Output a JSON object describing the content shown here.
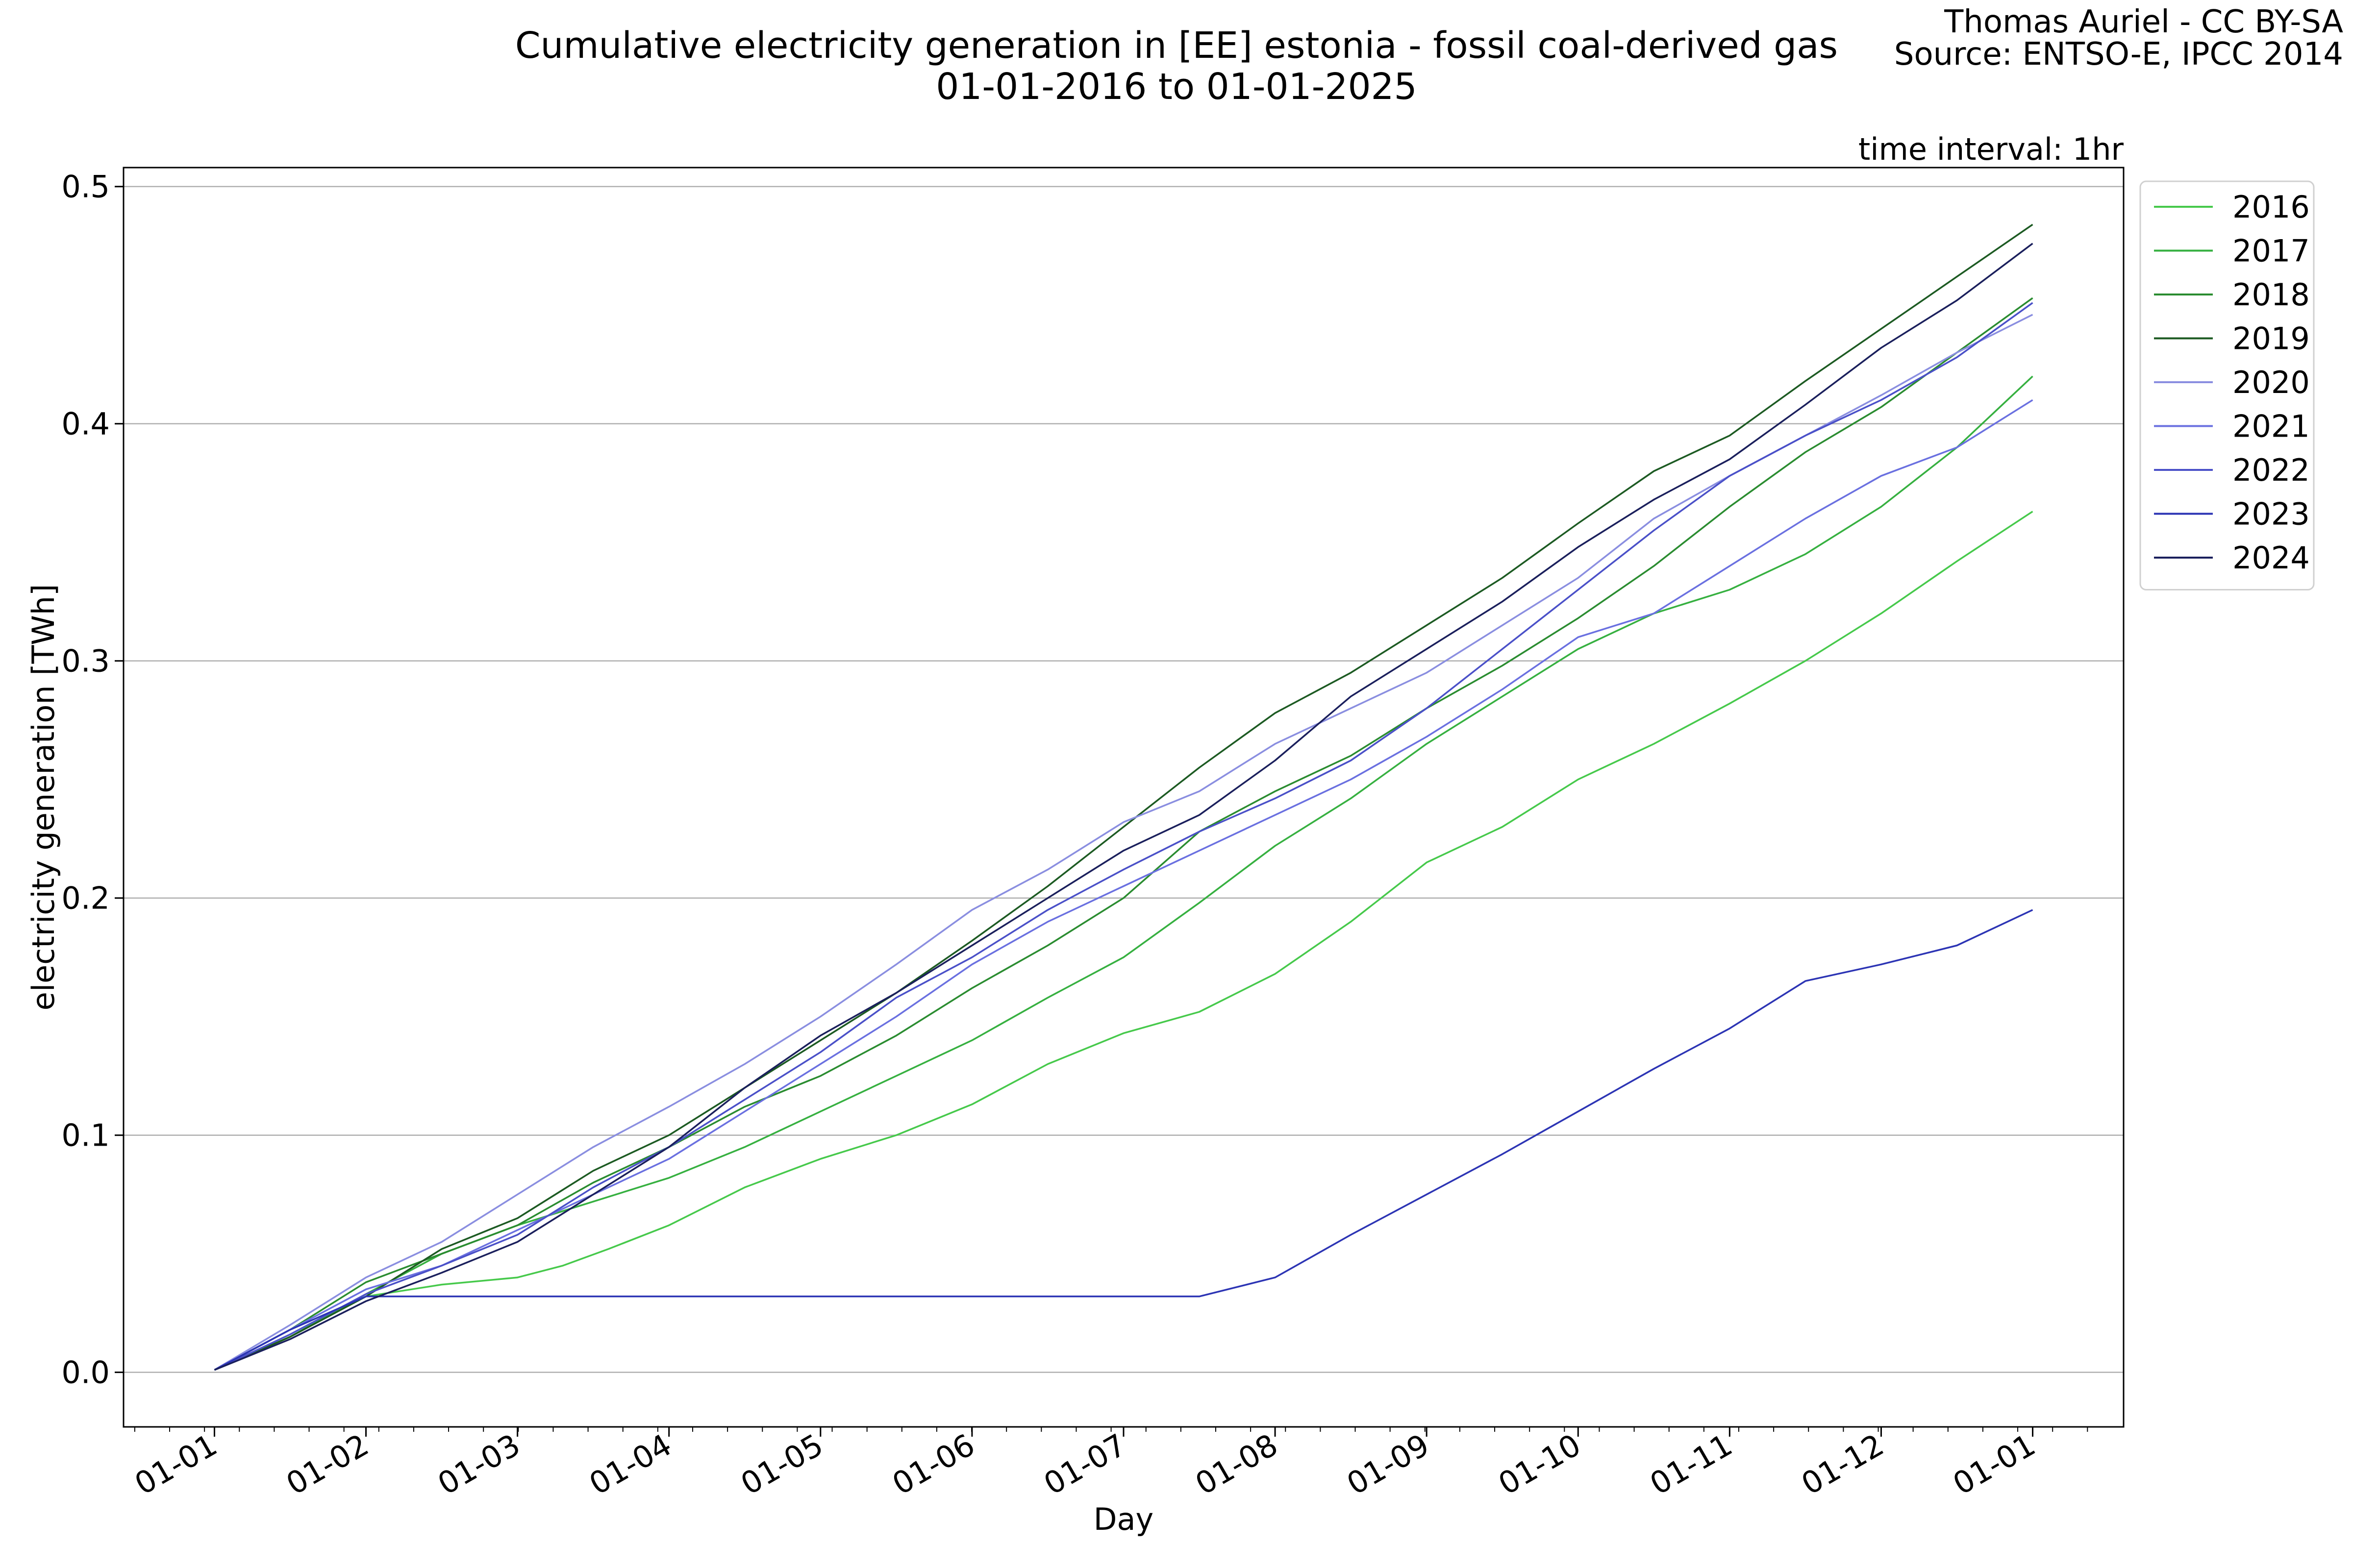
{
  "header": {
    "title_line1": "Cumulative electricity generation in [EE] estonia - fossil coal-derived gas",
    "title_line2": "01-01-2016 to 01-01-2025",
    "credit_line1": "Thomas Auriel - CC BY-SA",
    "credit_line2": "Source: ENTSO-E, IPCC 2014",
    "interval_note": "time interval: 1hr"
  },
  "chart_data": {
    "type": "line",
    "title": "Cumulative electricity generation in [EE] estonia - fossil coal-derived gas",
    "subtitle": "01-01-2016 to 01-01-2025",
    "xlabel": "Day",
    "ylabel": "electricity generation [TWh]",
    "x_tick_labels": [
      "01-01",
      "01-02",
      "01-03",
      "01-04",
      "01-05",
      "01-06",
      "01-07",
      "01-08",
      "01-09",
      "01-10",
      "01-11",
      "01-12",
      "01-01"
    ],
    "y_tick_labels": [
      "0.0",
      "0.1",
      "0.2",
      "0.3",
      "0.4",
      "0.5"
    ],
    "y_ticks": [
      0.0,
      0.1,
      0.2,
      0.3,
      0.4,
      0.5
    ],
    "ylim": [
      -0.023,
      0.508
    ],
    "xlim_months": [
      -0.6,
      12.6
    ],
    "grid": "horizontal",
    "legend_position": "upper right outside",
    "x_unit": "month of year (0 = 01-01, 12 = next 01-01)",
    "series": [
      {
        "name": "2016",
        "color": "#46c94b",
        "x": [
          0,
          0.5,
          1,
          1.5,
          2,
          2.3,
          2.6,
          3,
          3.5,
          4,
          4.5,
          5,
          5.5,
          6,
          6.5,
          7,
          7.5,
          8,
          8.5,
          9,
          9.5,
          10,
          10.5,
          11,
          11.5,
          12
        ],
        "y": [
          0.001,
          0.015,
          0.032,
          0.037,
          0.04,
          0.045,
          0.052,
          0.062,
          0.078,
          0.09,
          0.1,
          0.113,
          0.13,
          0.143,
          0.152,
          0.168,
          0.19,
          0.215,
          0.23,
          0.25,
          0.265,
          0.282,
          0.3,
          0.32,
          0.342,
          0.363
        ]
      },
      {
        "name": "2017",
        "color": "#36b040",
        "x": [
          0,
          0.5,
          1,
          1.5,
          2,
          2.5,
          3,
          3.5,
          4,
          4.5,
          5,
          5.5,
          6,
          6.5,
          7,
          7.5,
          8,
          8.5,
          9,
          9.5,
          10,
          10.5,
          11,
          11.5,
          12
        ],
        "y": [
          0.001,
          0.015,
          0.033,
          0.05,
          0.062,
          0.072,
          0.082,
          0.095,
          0.11,
          0.125,
          0.14,
          0.158,
          0.175,
          0.198,
          0.222,
          0.242,
          0.265,
          0.285,
          0.305,
          0.32,
          0.33,
          0.345,
          0.365,
          0.39,
          0.42
        ]
      },
      {
        "name": "2018",
        "color": "#2a8c30",
        "x": [
          0,
          0.5,
          1,
          1.5,
          2,
          2.5,
          3,
          3.5,
          4,
          4.5,
          5,
          5.5,
          6,
          6.5,
          7,
          7.5,
          8,
          8.5,
          9,
          9.5,
          10,
          10.5,
          11,
          11.5,
          12
        ],
        "y": [
          0.001,
          0.018,
          0.038,
          0.05,
          0.062,
          0.08,
          0.095,
          0.112,
          0.125,
          0.142,
          0.162,
          0.18,
          0.2,
          0.228,
          0.245,
          0.26,
          0.28,
          0.298,
          0.318,
          0.34,
          0.365,
          0.388,
          0.407,
          0.43,
          0.453
        ]
      },
      {
        "name": "2019",
        "color": "#1c5a22",
        "x": [
          0,
          0.5,
          1,
          1.5,
          2,
          2.5,
          3,
          3.5,
          4,
          4.5,
          5,
          5.5,
          6,
          6.5,
          7,
          7.5,
          8,
          8.5,
          9,
          9.5,
          10,
          10.5,
          11,
          11.5,
          12
        ],
        "y": [
          0.001,
          0.015,
          0.032,
          0.052,
          0.065,
          0.085,
          0.1,
          0.12,
          0.14,
          0.16,
          0.182,
          0.205,
          0.23,
          0.255,
          0.278,
          0.295,
          0.315,
          0.335,
          0.358,
          0.38,
          0.395,
          0.418,
          0.44,
          0.462,
          0.484
        ]
      },
      {
        "name": "2020",
        "color": "#8a8ee0",
        "x": [
          0,
          0.5,
          1,
          1.5,
          2,
          2.5,
          3,
          3.5,
          4,
          4.5,
          5,
          5.5,
          6,
          6.5,
          7,
          7.5,
          8,
          8.5,
          9,
          9.5,
          10,
          10.5,
          11,
          11.5,
          12
        ],
        "y": [
          0.001,
          0.02,
          0.04,
          0.055,
          0.075,
          0.095,
          0.112,
          0.13,
          0.15,
          0.172,
          0.195,
          0.212,
          0.232,
          0.245,
          0.265,
          0.28,
          0.295,
          0.315,
          0.335,
          0.36,
          0.378,
          0.395,
          0.412,
          0.43,
          0.446
        ]
      },
      {
        "name": "2021",
        "color": "#6a70e0",
        "x": [
          0,
          0.5,
          1,
          1.5,
          2,
          2.5,
          3,
          3.5,
          4,
          4.5,
          5,
          5.5,
          6,
          6.5,
          7,
          7.5,
          8,
          8.5,
          9,
          9.5,
          10,
          10.5,
          11,
          11.5,
          12
        ],
        "y": [
          0.001,
          0.018,
          0.035,
          0.045,
          0.06,
          0.075,
          0.09,
          0.11,
          0.13,
          0.15,
          0.172,
          0.19,
          0.205,
          0.22,
          0.235,
          0.25,
          0.268,
          0.288,
          0.31,
          0.32,
          0.34,
          0.36,
          0.378,
          0.39,
          0.41
        ]
      },
      {
        "name": "2022",
        "color": "#4a50c8",
        "x": [
          0,
          0.5,
          1,
          1.5,
          2,
          2.5,
          3,
          3.5,
          4,
          4.5,
          5,
          5.5,
          6,
          6.5,
          7,
          7.5,
          8,
          8.5,
          9,
          9.5,
          10,
          10.5,
          11,
          11.5,
          12
        ],
        "y": [
          0.001,
          0.016,
          0.033,
          0.045,
          0.058,
          0.078,
          0.095,
          0.115,
          0.135,
          0.158,
          0.175,
          0.195,
          0.212,
          0.228,
          0.242,
          0.258,
          0.28,
          0.305,
          0.33,
          0.355,
          0.378,
          0.395,
          0.41,
          0.428,
          0.451
        ]
      },
      {
        "name": "2023",
        "color": "#2c34b4",
        "x": [
          0,
          0.5,
          1,
          1.5,
          2,
          2.5,
          3,
          3.5,
          4,
          4.5,
          5,
          5.5,
          6,
          6.5,
          7,
          7.5,
          8,
          8.5,
          9,
          9.5,
          10,
          10.5,
          11,
          11.5,
          12
        ],
        "y": [
          0.001,
          0.018,
          0.032,
          0.032,
          0.032,
          0.032,
          0.032,
          0.032,
          0.032,
          0.032,
          0.032,
          0.032,
          0.032,
          0.032,
          0.04,
          0.058,
          0.075,
          0.092,
          0.11,
          0.128,
          0.145,
          0.165,
          0.172,
          0.18,
          0.195
        ]
      },
      {
        "name": "2024",
        "color": "#1a1f5c",
        "x": [
          0,
          0.5,
          1,
          1.5,
          2,
          2.5,
          3,
          3.5,
          4,
          4.5,
          5,
          5.5,
          6,
          6.5,
          7,
          7.5,
          8,
          8.5,
          9,
          9.5,
          10,
          10.5,
          11,
          11.5,
          12
        ],
        "y": [
          0.001,
          0.014,
          0.03,
          0.042,
          0.055,
          0.075,
          0.095,
          0.12,
          0.142,
          0.16,
          0.18,
          0.2,
          0.22,
          0.235,
          0.258,
          0.285,
          0.305,
          0.325,
          0.348,
          0.368,
          0.385,
          0.408,
          0.432,
          0.452,
          0.476
        ]
      }
    ]
  }
}
